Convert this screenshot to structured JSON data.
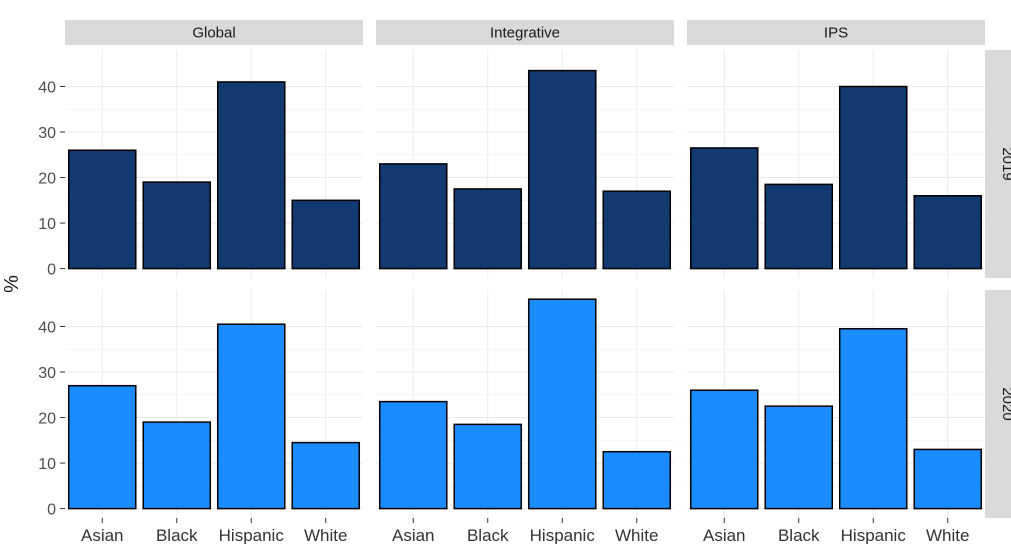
{
  "chart_data": {
    "type": "bar",
    "ylabel": "%",
    "xlabel": "",
    "ylim": [
      0,
      46
    ],
    "yticks": [
      0,
      10,
      20,
      30,
      40
    ],
    "categories": [
      "Asian",
      "Black",
      "Hispanic",
      "White"
    ],
    "facet_columns": [
      "Global",
      "Integrative",
      "IPS"
    ],
    "facet_rows": [
      "2019",
      "2020"
    ],
    "colors": {
      "2019": "#123a70",
      "2020": "#1a8cff",
      "strip": "#d9d9d9",
      "panel_bg": "#ffffff",
      "grid": "#ebebeb"
    },
    "grid": true,
    "panels": [
      {
        "row": "2019",
        "column": "Global",
        "values": [
          26,
          19,
          41,
          15
        ]
      },
      {
        "row": "2019",
        "column": "Integrative",
        "values": [
          23,
          17.5,
          43.5,
          17
        ]
      },
      {
        "row": "2019",
        "column": "IPS",
        "values": [
          26.5,
          18.5,
          40,
          16
        ]
      },
      {
        "row": "2020",
        "column": "Global",
        "values": [
          27,
          19,
          40.5,
          14.5
        ]
      },
      {
        "row": "2020",
        "column": "Integrative",
        "values": [
          23.5,
          18.5,
          46,
          12.5
        ]
      },
      {
        "row": "2020",
        "column": "IPS",
        "values": [
          26,
          22.5,
          39.5,
          13
        ]
      }
    ]
  }
}
